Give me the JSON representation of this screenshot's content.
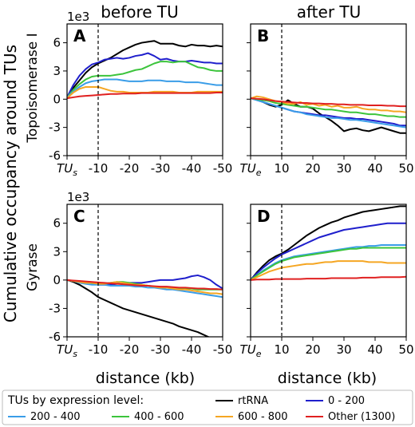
{
  "figure": {
    "col_titles": [
      "before TU",
      "after TU"
    ],
    "shared_ylabel": "Cumulative occupancy around TUs",
    "row_labels": [
      "Topoisomerase I",
      "Gyrase"
    ],
    "xlabel": "distance (kb)",
    "exponent": "1e3"
  },
  "legend": {
    "title": "TUs by expression level:",
    "entries": [
      {
        "label": "200 - 400",
        "color": "#3a9de8"
      },
      {
        "label": "400 - 600",
        "color": "#3cc43c"
      },
      {
        "label": "rtRNA",
        "color": "#000000"
      },
      {
        "label": "600 - 800",
        "color": "#f5a623"
      },
      {
        "label": "0 - 200",
        "color": "#1f1fcc"
      },
      {
        "label": "Other (1300)",
        "color": "#e02020"
      }
    ]
  },
  "chart_data": [
    {
      "panel": "A",
      "type": "line",
      "row": 0,
      "col": 0,
      "x": [
        0,
        -2,
        -4,
        -6,
        -8,
        -10,
        -12,
        -14,
        -16,
        -18,
        -20,
        -22,
        -24,
        -26,
        -28,
        -30,
        -32,
        -34,
        -36,
        -38,
        -40,
        -42,
        -44,
        -46,
        -48,
        -50
      ],
      "xticklabels": [
        "TUs",
        "-10",
        "-20",
        "-30",
        "-40",
        "-50"
      ],
      "xlim": [
        0,
        -50
      ],
      "ylim": [
        -6,
        8
      ],
      "yticks": [
        -6,
        -3,
        0,
        3,
        6
      ],
      "vline": -10,
      "series": [
        {
          "name": "rtRNA",
          "color": "#000000",
          "values": [
            0.2,
            1.2,
            2.0,
            2.8,
            3.4,
            3.8,
            4.1,
            4.4,
            4.8,
            5.2,
            5.5,
            5.8,
            6.0,
            6.1,
            6.2,
            5.9,
            5.9,
            5.9,
            5.7,
            5.6,
            5.8,
            5.7,
            5.7,
            5.6,
            5.7,
            5.6
          ]
        },
        {
          "name": "0 - 200",
          "color": "#1f1fcc",
          "values": [
            0.2,
            1.5,
            2.5,
            3.2,
            3.7,
            3.9,
            4.2,
            4.3,
            4.4,
            4.3,
            4.4,
            4.6,
            4.7,
            4.9,
            4.6,
            4.2,
            4.3,
            4.1,
            4.0,
            4.0,
            4.1,
            4.0,
            3.9,
            3.9,
            3.8,
            3.8
          ]
        },
        {
          "name": "400 - 600",
          "color": "#3cc43c",
          "values": [
            0.2,
            1.0,
            1.6,
            2.1,
            2.4,
            2.5,
            2.5,
            2.5,
            2.6,
            2.7,
            2.9,
            3.1,
            3.2,
            3.5,
            3.8,
            4.0,
            4.0,
            3.9,
            4.0,
            4.0,
            3.7,
            3.4,
            3.3,
            3.1,
            3.0,
            3.0
          ]
        },
        {
          "name": "200 - 400",
          "color": "#3a9de8",
          "values": [
            0.2,
            0.8,
            1.3,
            1.7,
            1.9,
            2.0,
            2.1,
            2.1,
            2.1,
            2.0,
            1.9,
            1.9,
            1.9,
            2.0,
            2.0,
            2.0,
            1.9,
            1.9,
            1.9,
            1.8,
            1.8,
            1.8,
            1.7,
            1.6,
            1.5,
            1.5
          ]
        },
        {
          "name": "600 - 800",
          "color": "#f5a623",
          "values": [
            0.1,
            0.7,
            1.1,
            1.3,
            1.3,
            1.3,
            1.1,
            0.9,
            0.8,
            0.8,
            0.7,
            0.7,
            0.7,
            0.7,
            0.8,
            0.8,
            0.8,
            0.8,
            0.7,
            0.7,
            0.7,
            0.8,
            0.8,
            0.8,
            0.8,
            0.8
          ]
        },
        {
          "name": "Other (1300)",
          "color": "#e02020",
          "values": [
            0.1,
            0.2,
            0.3,
            0.35,
            0.4,
            0.45,
            0.5,
            0.55,
            0.55,
            0.6,
            0.6,
            0.6,
            0.65,
            0.65,
            0.65,
            0.65,
            0.65,
            0.65,
            0.65,
            0.65,
            0.65,
            0.65,
            0.65,
            0.65,
            0.7,
            0.7
          ]
        }
      ]
    },
    {
      "panel": "B",
      "type": "line",
      "row": 0,
      "col": 1,
      "x": [
        0,
        2,
        4,
        6,
        8,
        10,
        12,
        14,
        16,
        18,
        20,
        22,
        24,
        26,
        28,
        30,
        32,
        34,
        36,
        38,
        40,
        42,
        44,
        46,
        48,
        50
      ],
      "xticklabels": [
        "TUe",
        "10",
        "20",
        "30",
        "40",
        "50"
      ],
      "xlim": [
        0,
        50
      ],
      "ylim": [
        -6,
        8
      ],
      "yticks": [
        -6,
        -3,
        0,
        3,
        6
      ],
      "vline": 10,
      "series": [
        {
          "name": "rtRNA",
          "color": "#000000",
          "values": [
            0.1,
            0.0,
            -0.3,
            -0.6,
            -0.8,
            -0.6,
            -0.1,
            -0.5,
            -0.8,
            -0.8,
            -1.0,
            -1.5,
            -1.9,
            -2.3,
            -2.8,
            -3.4,
            -3.2,
            -3.1,
            -3.3,
            -3.4,
            -3.2,
            -3.0,
            -3.2,
            -3.4,
            -3.6,
            -3.6
          ]
        },
        {
          "name": "0 - 200",
          "color": "#1f1fcc",
          "values": [
            0.1,
            -0.1,
            -0.3,
            -0.5,
            -0.7,
            -0.9,
            -1.1,
            -1.3,
            -1.4,
            -1.5,
            -1.6,
            -1.7,
            -1.7,
            -1.8,
            -1.9,
            -2.0,
            -2.0,
            -2.1,
            -2.1,
            -2.2,
            -2.3,
            -2.4,
            -2.5,
            -2.6,
            -2.8,
            -2.8
          ]
        },
        {
          "name": "200 - 400",
          "color": "#3a9de8",
          "values": [
            0.1,
            -0.1,
            -0.3,
            -0.5,
            -0.7,
            -0.9,
            -1.1,
            -1.3,
            -1.4,
            -1.6,
            -1.7,
            -1.8,
            -1.9,
            -2.0,
            -2.0,
            -2.1,
            -2.2,
            -2.2,
            -2.3,
            -2.4,
            -2.5,
            -2.6,
            -2.7,
            -2.8,
            -2.9,
            -3.0
          ]
        },
        {
          "name": "400 - 600",
          "color": "#3cc43c",
          "values": [
            0.1,
            0.0,
            -0.1,
            -0.2,
            -0.4,
            -0.5,
            -0.6,
            -0.7,
            -0.8,
            -0.8,
            -0.9,
            -1.0,
            -1.1,
            -1.1,
            -1.2,
            -1.3,
            -1.4,
            -1.4,
            -1.5,
            -1.6,
            -1.6,
            -1.7,
            -1.8,
            -1.8,
            -1.9,
            -1.9
          ]
        },
        {
          "name": "600 - 800",
          "color": "#f5a623",
          "values": [
            0.1,
            0.3,
            0.2,
            0.0,
            -0.2,
            -0.3,
            -0.5,
            -0.5,
            -0.3,
            -0.6,
            -0.5,
            -0.7,
            -0.6,
            -0.8,
            -0.7,
            -0.9,
            -0.9,
            -0.8,
            -1.0,
            -1.1,
            -1.1,
            -1.2,
            -1.2,
            -1.3,
            -1.3,
            -1.4
          ]
        },
        {
          "name": "Other (1300)",
          "color": "#e02020",
          "values": [
            0.1,
            0.05,
            0.0,
            -0.1,
            -0.2,
            -0.25,
            -0.3,
            -0.35,
            -0.4,
            -0.4,
            -0.45,
            -0.45,
            -0.5,
            -0.5,
            -0.55,
            -0.55,
            -0.6,
            -0.6,
            -0.6,
            -0.65,
            -0.65,
            -0.65,
            -0.7,
            -0.7,
            -0.75,
            -0.75
          ]
        }
      ]
    },
    {
      "panel": "C",
      "type": "line",
      "row": 1,
      "col": 0,
      "x": [
        0,
        -2,
        -4,
        -6,
        -8,
        -10,
        -12,
        -14,
        -16,
        -18,
        -20,
        -22,
        -24,
        -26,
        -28,
        -30,
        -32,
        -34,
        -36,
        -38,
        -40,
        -42,
        -44,
        -46,
        -48,
        -50
      ],
      "xticklabels": [
        "TUs",
        "-10",
        "-20",
        "-30",
        "-40",
        "-50"
      ],
      "xlim": [
        0,
        -50
      ],
      "ylim": [
        -6,
        8
      ],
      "yticks": [
        -6,
        -3,
        0,
        3,
        6
      ],
      "vline": -10,
      "series": [
        {
          "name": "rtRNA",
          "color": "#000000",
          "values": [
            0.0,
            -0.2,
            -0.5,
            -0.9,
            -1.3,
            -1.8,
            -2.1,
            -2.4,
            -2.7,
            -3.0,
            -3.2,
            -3.4,
            -3.6,
            -3.8,
            -4.0,
            -4.2,
            -4.4,
            -4.6,
            -4.9,
            -5.1,
            -5.3,
            -5.5,
            -5.8,
            -6.1,
            -6.3,
            -6.5
          ]
        },
        {
          "name": "0 - 200",
          "color": "#1f1fcc",
          "values": [
            0.0,
            -0.1,
            -0.2,
            -0.3,
            -0.4,
            -0.5,
            -0.5,
            -0.5,
            -0.4,
            -0.3,
            -0.3,
            -0.3,
            -0.3,
            -0.2,
            -0.1,
            0.0,
            0.0,
            0.0,
            0.1,
            0.2,
            0.4,
            0.5,
            0.3,
            0.0,
            -0.5,
            -0.9
          ]
        },
        {
          "name": "400 - 600",
          "color": "#3cc43c",
          "values": [
            0.0,
            -0.1,
            -0.2,
            -0.3,
            -0.4,
            -0.5,
            -0.4,
            -0.3,
            -0.2,
            -0.2,
            -0.3,
            -0.4,
            -0.5,
            -0.6,
            -0.7,
            -0.8,
            -0.8,
            -0.8,
            -0.9,
            -0.9,
            -0.9,
            -1.0,
            -1.0,
            -1.0,
            -1.0,
            -1.0
          ]
        },
        {
          "name": "200 - 400",
          "color": "#3a9de8",
          "values": [
            0.0,
            -0.1,
            -0.3,
            -0.4,
            -0.5,
            -0.5,
            -0.5,
            -0.6,
            -0.6,
            -0.6,
            -0.6,
            -0.7,
            -0.7,
            -0.8,
            -0.8,
            -0.9,
            -1.0,
            -1.0,
            -1.1,
            -1.2,
            -1.3,
            -1.4,
            -1.5,
            -1.6,
            -1.7,
            -1.8
          ]
        },
        {
          "name": "600 - 800",
          "color": "#f5a623",
          "values": [
            0.0,
            -0.1,
            -0.2,
            -0.3,
            -0.3,
            -0.4,
            -0.4,
            -0.3,
            -0.2,
            -0.3,
            -0.4,
            -0.5,
            -0.5,
            -0.6,
            -0.7,
            -0.8,
            -0.8,
            -0.9,
            -1.0,
            -1.0,
            -1.1,
            -1.2,
            -1.3,
            -1.4,
            -1.4,
            -1.5
          ]
        },
        {
          "name": "Other (1300)",
          "color": "#e02020",
          "values": [
            0.0,
            -0.05,
            -0.1,
            -0.15,
            -0.2,
            -0.25,
            -0.3,
            -0.35,
            -0.4,
            -0.45,
            -0.5,
            -0.55,
            -0.6,
            -0.6,
            -0.65,
            -0.7,
            -0.7,
            -0.75,
            -0.8,
            -0.8,
            -0.85,
            -0.9,
            -0.9,
            -0.95,
            -0.95,
            -1.0
          ]
        }
      ]
    },
    {
      "panel": "D",
      "type": "line",
      "row": 1,
      "col": 1,
      "x": [
        0,
        2,
        4,
        6,
        8,
        10,
        12,
        14,
        16,
        18,
        20,
        22,
        24,
        26,
        28,
        30,
        32,
        34,
        36,
        38,
        40,
        42,
        44,
        46,
        48,
        50
      ],
      "xticklabels": [
        "TUe",
        "10",
        "20",
        "30",
        "40",
        "50"
      ],
      "xlim": [
        0,
        50
      ],
      "ylim": [
        -6,
        8
      ],
      "yticks": [
        -6,
        -3,
        0,
        3,
        6
      ],
      "vline": 10,
      "series": [
        {
          "name": "rtRNA",
          "color": "#000000",
          "values": [
            0.0,
            0.8,
            1.5,
            2.1,
            2.5,
            2.8,
            3.2,
            3.7,
            4.2,
            4.7,
            5.1,
            5.5,
            5.8,
            6.1,
            6.3,
            6.6,
            6.8,
            7.0,
            7.2,
            7.3,
            7.4,
            7.5,
            7.6,
            7.7,
            7.8,
            7.8
          ]
        },
        {
          "name": "0 - 200",
          "color": "#1f1fcc",
          "values": [
            0.0,
            0.7,
            1.3,
            1.8,
            2.3,
            2.7,
            3.0,
            3.3,
            3.6,
            3.9,
            4.2,
            4.5,
            4.7,
            4.9,
            5.1,
            5.3,
            5.4,
            5.5,
            5.6,
            5.7,
            5.8,
            5.9,
            6.0,
            6.0,
            6.0,
            6.0
          ]
        },
        {
          "name": "200 - 400",
          "color": "#3a9de8",
          "values": [
            0.0,
            0.5,
            1.0,
            1.4,
            1.8,
            2.1,
            2.3,
            2.5,
            2.6,
            2.7,
            2.8,
            2.9,
            3.0,
            3.1,
            3.2,
            3.3,
            3.4,
            3.5,
            3.5,
            3.6,
            3.6,
            3.7,
            3.7,
            3.7,
            3.7,
            3.7
          ]
        },
        {
          "name": "400 - 600",
          "color": "#3cc43c",
          "values": [
            0.0,
            0.5,
            0.9,
            1.3,
            1.7,
            2.0,
            2.2,
            2.4,
            2.5,
            2.6,
            2.7,
            2.8,
            2.9,
            3.0,
            3.1,
            3.2,
            3.3,
            3.3,
            3.4,
            3.4,
            3.4,
            3.4,
            3.4,
            3.4,
            3.4,
            3.4
          ]
        },
        {
          "name": "600 - 800",
          "color": "#f5a623",
          "values": [
            0.0,
            0.3,
            0.6,
            0.9,
            1.1,
            1.3,
            1.4,
            1.5,
            1.6,
            1.7,
            1.7,
            1.8,
            1.9,
            1.9,
            2.0,
            2.0,
            2.0,
            2.0,
            2.0,
            1.9,
            1.9,
            1.9,
            1.8,
            1.8,
            1.8,
            1.8
          ]
        },
        {
          "name": "Other (1300)",
          "color": "#e02020",
          "values": [
            0.0,
            0.05,
            0.05,
            0.05,
            0.1,
            0.1,
            0.1,
            0.1,
            0.1,
            0.15,
            0.15,
            0.15,
            0.15,
            0.2,
            0.2,
            0.2,
            0.2,
            0.2,
            0.25,
            0.25,
            0.25,
            0.3,
            0.3,
            0.3,
            0.3,
            0.35
          ]
        }
      ]
    }
  ]
}
